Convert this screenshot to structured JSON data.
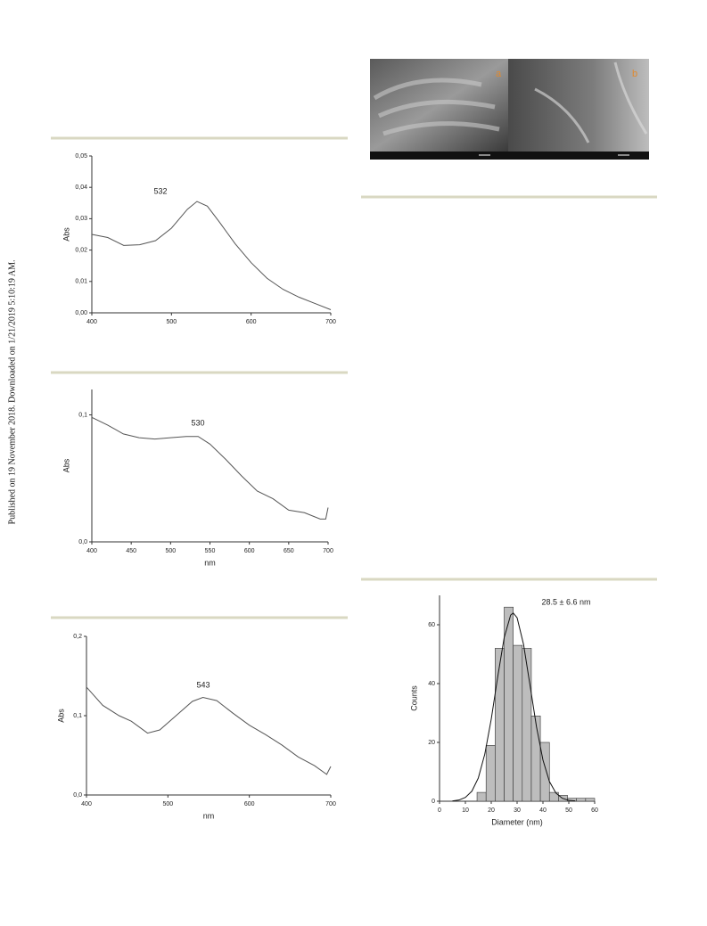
{
  "side_note": "Published on 19 November 2018. Downloaded on 1/21/2019 5:10:19 AM.",
  "image_labels": [
    "a",
    "b"
  ],
  "chart_data": [
    {
      "type": "line",
      "y_label": "Abs",
      "annotation": "532",
      "x": [
        400,
        420,
        440,
        460,
        480,
        500,
        520,
        532,
        545,
        560,
        580,
        600,
        620,
        640,
        660,
        680,
        700
      ],
      "values": [
        0.025,
        0.024,
        0.0215,
        0.0217,
        0.023,
        0.027,
        0.033,
        0.0355,
        0.034,
        0.029,
        0.022,
        0.016,
        0.011,
        0.0075,
        0.005,
        0.003,
        0.001
      ],
      "color": "#555555",
      "xlim": [
        400,
        700
      ],
      "xticks": [
        400,
        500,
        600,
        700
      ],
      "ylim": [
        0,
        0.05
      ],
      "yticks": [
        {
          "value": 0,
          "label": "0,00"
        },
        {
          "value": 0.01,
          "label": "0,01"
        },
        {
          "value": 0.02,
          "label": "0,02"
        },
        {
          "value": 0.03,
          "label": "0,03"
        },
        {
          "value": 0.04,
          "label": "0,04"
        },
        {
          "value": 0.05,
          "label": "0,05"
        }
      ]
    },
    {
      "type": "line",
      "x_label": "nm",
      "y_label": "Abs",
      "annotation": "530",
      "x": [
        400,
        420,
        440,
        460,
        480,
        500,
        520,
        535,
        550,
        570,
        590,
        610,
        630,
        650,
        670,
        690,
        697,
        700
      ],
      "values": [
        0.098,
        0.092,
        0.085,
        0.082,
        0.081,
        0.082,
        0.083,
        0.083,
        0.077,
        0.065,
        0.052,
        0.04,
        0.034,
        0.025,
        0.023,
        0.018,
        0.018,
        0.027
      ],
      "color": "#555555",
      "xlim": [
        400,
        700
      ],
      "xticks": [
        400,
        450,
        500,
        550,
        600,
        650,
        700
      ],
      "ylim": [
        0,
        0.12
      ],
      "yticks": [
        {
          "value": 0,
          "label": "0,0"
        },
        {
          "value": 0.1,
          "label": "0,1"
        }
      ]
    },
    {
      "type": "line",
      "x_label": "nm",
      "y_label": "Abs",
      "annotation": "543",
      "x": [
        400,
        420,
        440,
        455,
        475,
        490,
        510,
        530,
        543,
        560,
        580,
        600,
        620,
        640,
        660,
        680,
        695,
        700
      ],
      "values": [
        0.136,
        0.113,
        0.1,
        0.093,
        0.078,
        0.082,
        0.1,
        0.118,
        0.123,
        0.119,
        0.103,
        0.088,
        0.076,
        0.063,
        0.048,
        0.037,
        0.026,
        0.036
      ],
      "color": "#555555",
      "xlim": [
        400,
        700
      ],
      "xticks": [
        400,
        500,
        600,
        700
      ],
      "ylim": [
        0,
        0.2
      ],
      "yticks": [
        {
          "value": 0,
          "label": "0,0"
        },
        {
          "value": 0.1,
          "label": "0,1"
        },
        {
          "value": 0.2,
          "label": "0,2"
        }
      ]
    },
    {
      "type": "histogram",
      "x_label": "Diameter (nm)",
      "y_label": "Counts",
      "annotation": "28.5 ± 6.6 nm",
      "bins": [
        14.5,
        18,
        21.5,
        25,
        28.5,
        32,
        35.5,
        39,
        42.5,
        46,
        49.5,
        53,
        56.5,
        60
      ],
      "values": [
        3,
        19,
        52,
        66,
        53,
        52,
        29,
        20,
        3,
        2,
        1,
        1,
        1
      ],
      "color": "#bdbdbd",
      "fit": {
        "x": [
          5,
          7.5,
          10,
          12.5,
          15,
          17.5,
          20,
          22.5,
          25,
          27.5,
          28.5,
          30,
          32.5,
          35,
          37.5,
          40,
          42.5,
          45,
          47.5,
          50,
          52.5
        ],
        "values": [
          0.1,
          0.4,
          1.3,
          3.4,
          7.9,
          16,
          27.9,
          42.3,
          55.6,
          63.3,
          64,
          62.4,
          53.3,
          39.4,
          25.3,
          14,
          6.7,
          2.8,
          1,
          0.3,
          0.1
        ]
      },
      "xlim": [
        0,
        60
      ],
      "xticks": [
        0,
        10,
        20,
        30,
        40,
        50,
        60
      ],
      "ylim": [
        0,
        70
      ],
      "yticks": [
        0,
        20,
        40,
        60
      ]
    }
  ]
}
